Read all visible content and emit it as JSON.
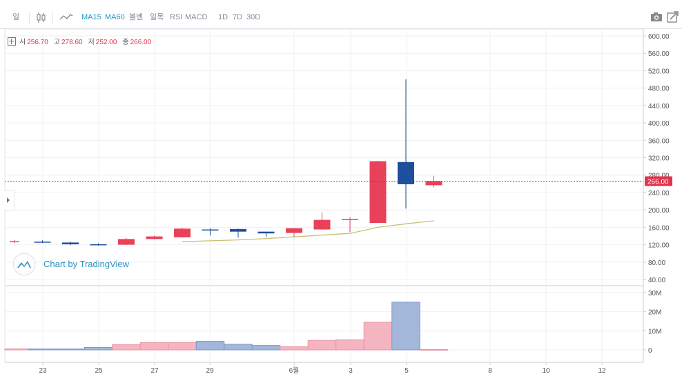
{
  "toolbar": {
    "interval": "일",
    "ma15": "MA15",
    "ma60": "MA60",
    "bollinger": "볼벤",
    "ichimoku": "일목",
    "rsi": "RSI",
    "macd": "MACD",
    "range_1d": "1D",
    "range_7d": "7D",
    "range_30d": "30D",
    "icons": [
      "candlestick-icon",
      "line-chart-icon",
      "camera-icon",
      "expand-icon"
    ]
  },
  "legend": {
    "open_label": "시",
    "open_value": "256.70",
    "high_label": "고",
    "high_value": "278.60",
    "low_label": "저",
    "low_value": "252.00",
    "close_label": "종",
    "close_value": "266.00"
  },
  "watermark": {
    "text": "Chart by TradingView"
  },
  "colors": {
    "up": "#e8425a",
    "down": "#1c4f9c",
    "volume_up": "#f5b5c0",
    "volume_down": "#a3b7da",
    "ma_line": "#c8bf76",
    "price_line": "#c0284a",
    "accent": "#2196c4"
  },
  "chart_data": [
    {
      "type": "candlestick",
      "x_tick_labels": [
        "23",
        "25",
        "27",
        "29",
        "6월",
        "3",
        "5",
        "8",
        "10",
        "12"
      ],
      "y_tick_labels": [
        "600.00",
        "560.00",
        "520.00",
        "480.00",
        "440.00",
        "400.00",
        "360.00",
        "320.00",
        "280.00",
        "240.00",
        "200.00",
        "160.00",
        "120.00",
        "80.00",
        "40.00"
      ],
      "ylim": [
        30,
        610
      ],
      "last_price_label": "266.00",
      "candles": [
        {
          "o": 127,
          "h": 131,
          "l": 124,
          "c": 128
        },
        {
          "o": 127,
          "h": 130,
          "l": 124,
          "c": 125
        },
        {
          "o": 125,
          "h": 127,
          "l": 119,
          "c": 121
        },
        {
          "o": 121,
          "h": 123,
          "l": 118,
          "c": 119
        },
        {
          "o": 120,
          "h": 135,
          "l": 119,
          "c": 133
        },
        {
          "o": 133,
          "h": 141,
          "l": 132,
          "c": 139
        },
        {
          "o": 137,
          "h": 159,
          "l": 136,
          "c": 157
        },
        {
          "o": 155,
          "h": 158,
          "l": 141,
          "c": 154
        },
        {
          "o": 156,
          "h": 157,
          "l": 136,
          "c": 150
        },
        {
          "o": 150,
          "h": 150,
          "l": 138,
          "c": 146
        },
        {
          "o": 147,
          "h": 158,
          "l": 137,
          "c": 158
        },
        {
          "o": 155,
          "h": 194,
          "l": 154,
          "c": 177
        },
        {
          "o": 177,
          "h": 183,
          "l": 149,
          "c": 179
        },
        {
          "o": 170,
          "h": 313,
          "l": 170,
          "c": 312
        },
        {
          "o": 310,
          "h": 500,
          "l": 203,
          "c": 259
        },
        {
          "o": 256.7,
          "h": 278.6,
          "l": 252,
          "c": 266
        }
      ],
      "ma15": [
        null,
        null,
        null,
        null,
        null,
        null,
        127,
        129,
        131,
        134,
        138,
        142,
        146,
        160,
        168,
        175
      ]
    },
    {
      "type": "bar",
      "name": "volume",
      "y_tick_labels": [
        "30M",
        "20M",
        "10M",
        "0"
      ],
      "ylim": [
        0,
        30
      ],
      "values": [
        0.5,
        0.5,
        0.5,
        1.3,
        2.8,
        3.8,
        3.8,
        4.5,
        3.0,
        2.3,
        1.7,
        5.0,
        5.3,
        14.5,
        25.0,
        0.2
      ]
    }
  ]
}
